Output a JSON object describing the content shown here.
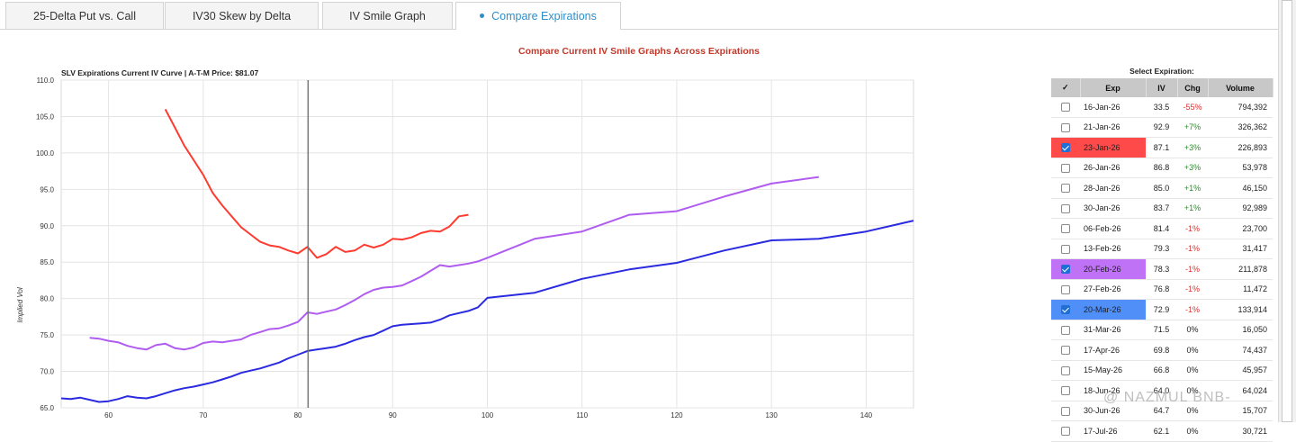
{
  "tabs": [
    {
      "label": "25-Delta Put vs. Call",
      "active": false
    },
    {
      "label": "IV30 Skew by Delta",
      "active": false
    },
    {
      "label": "IV Smile Graph",
      "active": false
    },
    {
      "label": "Compare Expirations",
      "active": true
    }
  ],
  "page_title": "Compare Current IV Smile Graphs Across Expirations",
  "chart_data": {
    "type": "line",
    "title": "SLV Expirations Current IV Curve | A-T-M Price: $81.07",
    "ylabel": "Implied Vol",
    "xlabel": "",
    "xlim": [
      55,
      145
    ],
    "ylim": [
      65,
      110
    ],
    "x_ticks": [
      "60",
      "70",
      "80",
      "90",
      "100",
      "110",
      "120",
      "130",
      "140"
    ],
    "y_ticks": [
      "65.0",
      "70.0",
      "75.0",
      "80.0",
      "85.0",
      "90.0",
      "95.0",
      "100.0",
      "105.0",
      "110.0"
    ],
    "atm_line_x": 81.07,
    "grid": true,
    "series": [
      {
        "name": "23-Jan-26",
        "color": "#ff3b30",
        "x": [
          66,
          67,
          68,
          69,
          70,
          71,
          72,
          73,
          74,
          75,
          76,
          77,
          78,
          79,
          80,
          81,
          82,
          83,
          84,
          85,
          86,
          87,
          88,
          89,
          90,
          91,
          92,
          93,
          94,
          95,
          96,
          97,
          98
        ],
        "y": [
          106,
          103.5,
          101,
          99,
          97,
          94.5,
          92.8,
          91.3,
          89.8,
          88.8,
          87.8,
          87.3,
          87.1,
          86.6,
          86.2,
          87.1,
          85.6,
          86.1,
          87.1,
          86.4,
          86.6,
          87.4,
          87.0,
          87.4,
          88.2,
          88.1,
          88.4,
          89.0,
          89.3,
          89.2,
          89.9,
          91.3,
          91.5
        ]
      },
      {
        "name": "20-Feb-26",
        "color": "#b05cf0",
        "x": [
          58,
          59,
          60,
          61,
          62,
          63,
          64,
          65,
          66,
          67,
          68,
          69,
          70,
          71,
          72,
          73,
          74,
          75,
          76,
          77,
          78,
          79,
          80,
          81,
          82,
          83,
          84,
          85,
          86,
          87,
          88,
          89,
          90,
          91,
          92,
          93,
          94,
          95,
          96,
          97,
          98,
          99,
          100,
          105,
          110,
          115,
          120,
          125,
          130,
          135
        ],
        "y": [
          74.6,
          74.5,
          74.2,
          74.0,
          73.5,
          73.2,
          73.0,
          73.6,
          73.8,
          73.2,
          73.0,
          73.3,
          73.9,
          74.1,
          74.0,
          74.2,
          74.4,
          75.0,
          75.4,
          75.8,
          75.9,
          76.3,
          76.8,
          78.1,
          77.9,
          78.2,
          78.5,
          79.1,
          79.8,
          80.6,
          81.2,
          81.5,
          81.6,
          81.8,
          82.4,
          83.0,
          83.8,
          84.6,
          84.4,
          84.6,
          84.8,
          85.1,
          85.6,
          88.2,
          89.2,
          91.5,
          92.0,
          94.0,
          95.8,
          96.7
        ]
      },
      {
        "name": "20-Mar-26",
        "color": "#2a2ae0",
        "x": [
          55,
          56,
          57,
          58,
          59,
          60,
          61,
          62,
          63,
          64,
          65,
          66,
          67,
          68,
          69,
          70,
          71,
          72,
          73,
          74,
          75,
          76,
          77,
          78,
          79,
          80,
          81,
          82,
          83,
          84,
          85,
          86,
          87,
          88,
          89,
          90,
          91,
          92,
          93,
          94,
          95,
          96,
          97,
          98,
          99,
          100,
          105,
          110,
          115,
          120,
          125,
          130,
          135,
          140,
          145
        ],
        "y": [
          66.3,
          66.2,
          66.4,
          66.1,
          65.8,
          65.9,
          66.2,
          66.6,
          66.4,
          66.3,
          66.6,
          67.0,
          67.4,
          67.7,
          67.9,
          68.2,
          68.5,
          68.9,
          69.3,
          69.8,
          70.1,
          70.4,
          70.8,
          71.2,
          71.8,
          72.3,
          72.8,
          73.0,
          73.2,
          73.4,
          73.8,
          74.3,
          74.7,
          75.0,
          75.6,
          76.2,
          76.4,
          76.5,
          76.6,
          76.7,
          77.1,
          77.7,
          78.0,
          78.3,
          78.8,
          80.1,
          80.8,
          82.7,
          84.0,
          84.9,
          86.6,
          88.0,
          88.2,
          89.2,
          90.7
        ]
      }
    ]
  },
  "table": {
    "title": "Select Expiration:",
    "headers": {
      "check": "✓",
      "exp": "Exp",
      "iv": "IV",
      "chg": "Chg",
      "volume": "Volume"
    },
    "rows": [
      {
        "exp": "16-Jan-26",
        "iv": "33.5",
        "chg": "-55%",
        "volume": "794,392",
        "checked": false,
        "highlight": ""
      },
      {
        "exp": "21-Jan-26",
        "iv": "92.9",
        "chg": "+7%",
        "volume": "326,362",
        "checked": false,
        "highlight": ""
      },
      {
        "exp": "23-Jan-26",
        "iv": "87.1",
        "chg": "+3%",
        "volume": "226,893",
        "checked": true,
        "highlight": "#ff4a4a"
      },
      {
        "exp": "26-Jan-26",
        "iv": "86.8",
        "chg": "+3%",
        "volume": "53,978",
        "checked": false,
        "highlight": ""
      },
      {
        "exp": "28-Jan-26",
        "iv": "85.0",
        "chg": "+1%",
        "volume": "46,150",
        "checked": false,
        "highlight": ""
      },
      {
        "exp": "30-Jan-26",
        "iv": "83.7",
        "chg": "+1%",
        "volume": "92,989",
        "checked": false,
        "highlight": ""
      },
      {
        "exp": "06-Feb-26",
        "iv": "81.4",
        "chg": "-1%",
        "volume": "23,700",
        "checked": false,
        "highlight": ""
      },
      {
        "exp": "13-Feb-26",
        "iv": "79.3",
        "chg": "-1%",
        "volume": "31,417",
        "checked": false,
        "highlight": ""
      },
      {
        "exp": "20-Feb-26",
        "iv": "78.3",
        "chg": "-1%",
        "volume": "211,878",
        "checked": true,
        "highlight": "#bf72f5"
      },
      {
        "exp": "27-Feb-26",
        "iv": "76.8",
        "chg": "-1%",
        "volume": "11,472",
        "checked": false,
        "highlight": ""
      },
      {
        "exp": "20-Mar-26",
        "iv": "72.9",
        "chg": "-1%",
        "volume": "133,914",
        "checked": true,
        "highlight": "#4f8ff7"
      },
      {
        "exp": "31-Mar-26",
        "iv": "71.5",
        "chg": "0%",
        "volume": "16,050",
        "checked": false,
        "highlight": ""
      },
      {
        "exp": "17-Apr-26",
        "iv": "69.8",
        "chg": "0%",
        "volume": "74,437",
        "checked": false,
        "highlight": ""
      },
      {
        "exp": "15-May-26",
        "iv": "66.8",
        "chg": "0%",
        "volume": "45,957",
        "checked": false,
        "highlight": ""
      },
      {
        "exp": "18-Jun-26",
        "iv": "64.0",
        "chg": "0%",
        "volume": "64,024",
        "checked": false,
        "highlight": ""
      },
      {
        "exp": "30-Jun-26",
        "iv": "64.7",
        "chg": "0%",
        "volume": "15,707",
        "checked": false,
        "highlight": ""
      },
      {
        "exp": "17-Jul-26",
        "iv": "62.1",
        "chg": "0%",
        "volume": "30,721",
        "checked": false,
        "highlight": ""
      }
    ]
  },
  "watermark": "@ NAZMUL BNB-"
}
